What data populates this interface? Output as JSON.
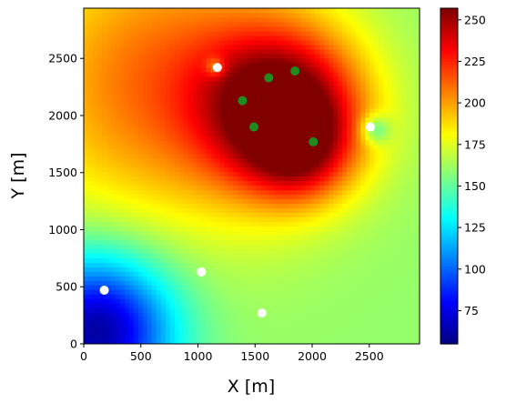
{
  "chart_data": {
    "type": "heatmap",
    "xlabel": "X [m]",
    "ylabel": "Y [m]",
    "xlim": [
      0,
      2940
    ],
    "ylim": [
      0,
      2940
    ],
    "x_ticks": [
      0,
      500,
      1000,
      1500,
      2000,
      2500
    ],
    "y_ticks": [
      0,
      500,
      1000,
      1500,
      2000,
      2500
    ],
    "colorbar": {
      "colormap": "jet",
      "range": [
        55,
        257
      ],
      "ticks": [
        75,
        100,
        125,
        150,
        175,
        200,
        225,
        250
      ]
    },
    "field": {
      "background": 160,
      "sources": [
        {
          "x": 1750,
          "y": 2050,
          "amplitude": 100,
          "sigma": 480
        },
        {
          "x": 1900,
          "y": 1700,
          "amplitude": 40,
          "sigma": 300
        },
        {
          "x": 700,
          "y": 2300,
          "amplitude": 52,
          "sigma": 900
        },
        {
          "x": 120,
          "y": 120,
          "amplitude": -100,
          "sigma": 470
        },
        {
          "x": 2550,
          "y": 1880,
          "amplitude": -35,
          "sigma": 90
        },
        {
          "x": 1150,
          "y": 2430,
          "amplitude": -30,
          "sigma": 60
        }
      ]
    },
    "series": [
      {
        "marker": "circle",
        "color": "#1e8c1e",
        "points": [
          {
            "x": 1390,
            "y": 2130
          },
          {
            "x": 1620,
            "y": 2330
          },
          {
            "x": 1850,
            "y": 2390
          },
          {
            "x": 1490,
            "y": 1900
          },
          {
            "x": 2010,
            "y": 1770
          }
        ]
      },
      {
        "marker": "circle",
        "color": "#ffffff",
        "points": [
          {
            "x": 1170,
            "y": 2420
          },
          {
            "x": 2510,
            "y": 1900
          },
          {
            "x": 1030,
            "y": 630
          },
          {
            "x": 180,
            "y": 470
          },
          {
            "x": 1560,
            "y": 270
          }
        ]
      }
    ]
  }
}
